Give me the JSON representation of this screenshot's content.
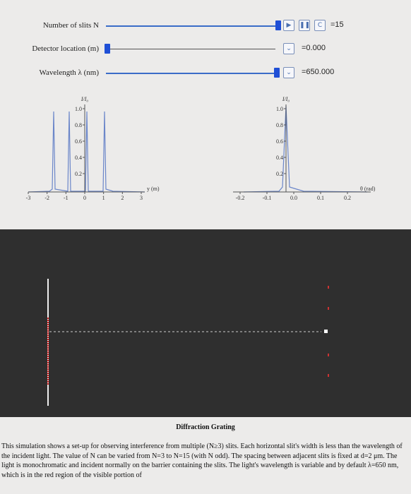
{
  "controls": [
    {
      "label": "Number of slits N",
      "value": "=15"
    },
    {
      "label": "Detector location (m)",
      "value": "=0.000"
    },
    {
      "label": "Wavelength λ (nm)",
      "value": "=650.000"
    }
  ],
  "plots": [
    {
      "y_label": "I/I₀",
      "x_label": "y (m)",
      "yticks": [
        "1.0",
        "0.8",
        "0.6",
        "0.4",
        "0.2"
      ],
      "xticks": [
        "-3",
        "-2",
        "-1",
        "0",
        "1",
        "2",
        "3"
      ]
    },
    {
      "y_label": "I/I₀",
      "x_label": "θ (rad)",
      "yticks": [
        "1.0",
        "0.8",
        "0.6",
        "0.4",
        "0.2"
      ],
      "xticks": [
        "-0.2",
        "-0.1",
        "0.0",
        "0.1",
        "0.2"
      ]
    }
  ],
  "caption": {
    "title": "Diffraction Grating",
    "text": "This simulation shows a set-up for observing interference from multiple (N≥3) slits. Each horizontal slit's width is less than the wavelength of the incident light. The value of N can be varied from N=3 to N=15 (with N odd). The spacing between adjacent slits is fixed at d=2 μm. The light is monochromatic and incident normally on the barrier containing the slits. The light's wavelength is variable and by default λ=650 nm, which is in the red region of the visible portion of"
  }
}
